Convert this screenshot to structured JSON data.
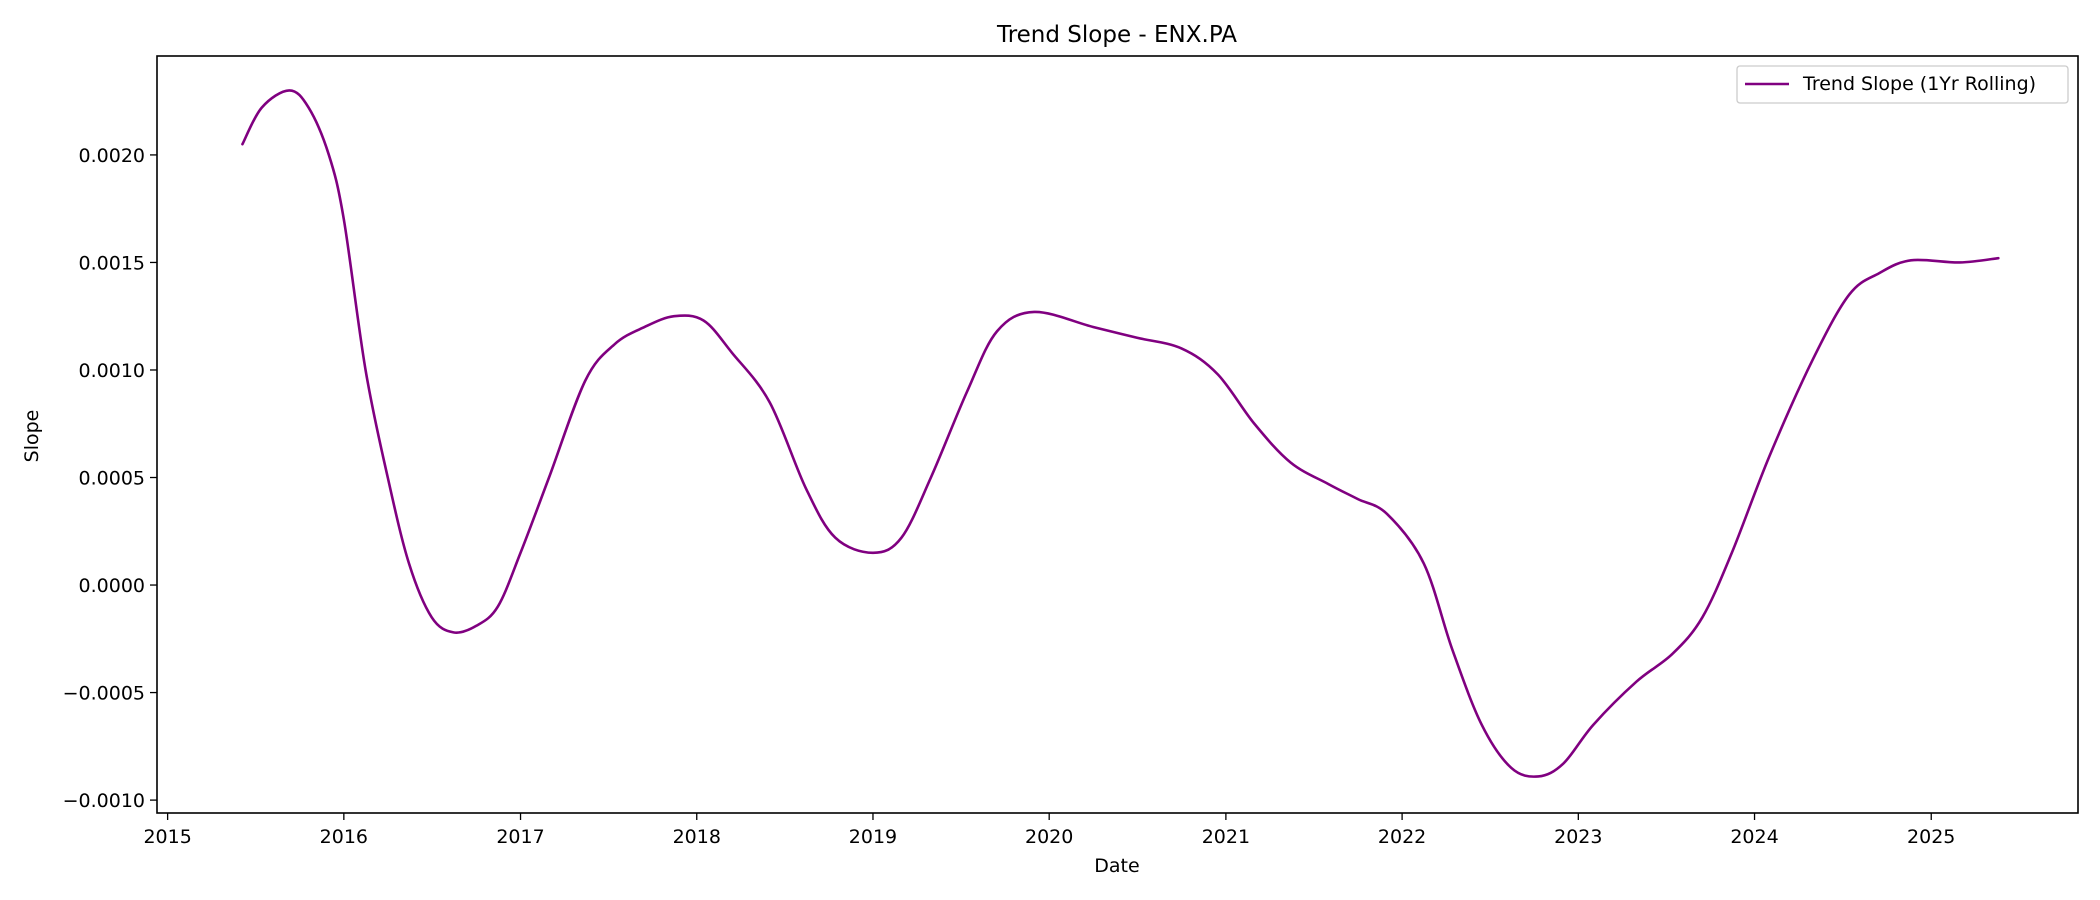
{
  "chart_data": {
    "type": "line",
    "title": "Trend Slope - ENX.PA",
    "xlabel": "Date",
    "ylabel": "Slope",
    "xlim": [
      "2014-12-10",
      "2025-11-01"
    ],
    "ylim": [
      -0.00106,
      0.00246
    ],
    "x_ticks": [
      "2015",
      "2016",
      "2017",
      "2018",
      "2019",
      "2020",
      "2021",
      "2022",
      "2023",
      "2024",
      "2025"
    ],
    "y_ticks": [
      -0.001,
      -0.0005,
      0.0,
      0.0005,
      0.001,
      0.0015,
      0.002
    ],
    "y_tick_labels": [
      "−0.0010",
      "−0.0005",
      "0.0000",
      "0.0005",
      "0.0010",
      "0.0015",
      "0.0020"
    ],
    "grid": false,
    "legend_position": "top-right",
    "series": [
      {
        "name": "Trend Slope (1Yr Rolling)",
        "color": "#800080",
        "points": [
          [
            "2015-06-05",
            0.00205
          ],
          [
            "2015-07-15",
            0.00222
          ],
          [
            "2015-09-10",
            0.0023
          ],
          [
            "2015-10-20",
            0.00222
          ],
          [
            "2015-12-01",
            0.002
          ],
          [
            "2016-01-01",
            0.0017
          ],
          [
            "2016-02-15",
            0.001
          ],
          [
            "2016-04-01",
            0.0005
          ],
          [
            "2016-05-15",
            0.0001
          ],
          [
            "2016-07-01",
            -0.00015
          ],
          [
            "2016-08-15",
            -0.00022
          ],
          [
            "2016-10-01",
            -0.00019
          ],
          [
            "2016-11-15",
            -0.0001
          ],
          [
            "2017-01-01",
            0.00015
          ],
          [
            "2017-03-01",
            0.0005
          ],
          [
            "2017-05-15",
            0.00095
          ],
          [
            "2017-07-15",
            0.00112
          ],
          [
            "2017-09-15",
            0.0012
          ],
          [
            "2017-11-15",
            0.00125
          ],
          [
            "2018-01-15",
            0.00123
          ],
          [
            "2018-03-15",
            0.00108
          ],
          [
            "2018-06-01",
            0.00085
          ],
          [
            "2018-08-15",
            0.00045
          ],
          [
            "2018-10-15",
            0.00022
          ],
          [
            "2019-01-01",
            0.00015
          ],
          [
            "2019-03-01",
            0.00022
          ],
          [
            "2019-05-01",
            0.0005
          ],
          [
            "2019-07-15",
            0.0009
          ],
          [
            "2019-09-15",
            0.00118
          ],
          [
            "2019-12-01",
            0.00127
          ],
          [
            "2020-04-01",
            0.0012
          ],
          [
            "2020-07-01",
            0.00115
          ],
          [
            "2020-10-01",
            0.0011
          ],
          [
            "2020-12-15",
            0.00098
          ],
          [
            "2021-03-01",
            0.00075
          ],
          [
            "2021-05-15",
            0.00057
          ],
          [
            "2021-08-01",
            0.00047
          ],
          [
            "2021-10-01",
            0.0004
          ],
          [
            "2021-12-01",
            0.00033
          ],
          [
            "2022-02-15",
            0.0001
          ],
          [
            "2022-04-15",
            -0.0003
          ],
          [
            "2022-06-15",
            -0.00065
          ],
          [
            "2022-08-15",
            -0.00085
          ],
          [
            "2022-10-10",
            -0.00089
          ],
          [
            "2022-12-01",
            -0.00083
          ],
          [
            "2023-02-01",
            -0.00065
          ],
          [
            "2023-05-01",
            -0.00045
          ],
          [
            "2023-07-15",
            -0.00032
          ],
          [
            "2023-09-15",
            -0.00015
          ],
          [
            "2023-11-15",
            0.00015
          ],
          [
            "2024-02-01",
            0.0006
          ],
          [
            "2024-05-01",
            0.00105
          ],
          [
            "2024-07-15",
            0.00135
          ],
          [
            "2024-09-15",
            0.00145
          ],
          [
            "2024-11-20",
            0.00151
          ],
          [
            "2025-03-01",
            0.0015
          ],
          [
            "2025-05-20",
            0.00152
          ]
        ]
      }
    ]
  }
}
